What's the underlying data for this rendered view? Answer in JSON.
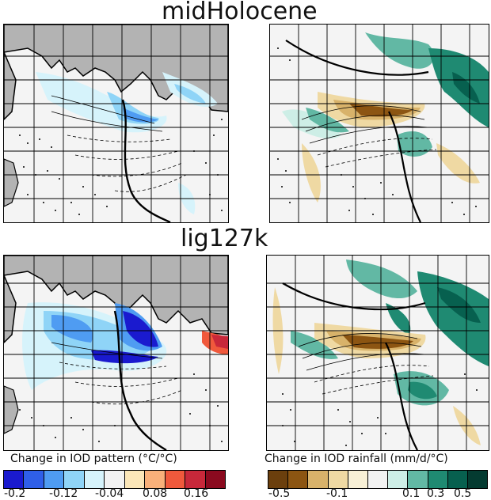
{
  "rows": [
    {
      "title": "midHolocene"
    },
    {
      "title": "lig127k"
    }
  ],
  "colorbars": {
    "sst": {
      "label": "Change in IOD pattern (°C/°C)",
      "colors": [
        "#1a1acf",
        "#2f5fe8",
        "#4f9cf2",
        "#8fd4f7",
        "#d6f3fb",
        "#f2f2f2",
        "#fbe6b8",
        "#f9b07a",
        "#f0593c",
        "#c8283a",
        "#8b0a1f"
      ],
      "ticks": [
        "-0.2",
        "-0.12",
        "-0.04",
        "0.08",
        "0.16"
      ]
    },
    "rain": {
      "label": "Change in IOD rainfall (mm/d/°C)",
      "colors": [
        "#6b3f0d",
        "#8c5512",
        "#d8b26a",
        "#efd9a3",
        "#f8f0d6",
        "#f2f2f2",
        "#cdeee6",
        "#62b8a4",
        "#1f8a72",
        "#07604f",
        "#043b31"
      ],
      "ticks": [
        "-0.5",
        "-0.1",
        "0.1",
        "0.3",
        "0.5"
      ]
    }
  }
}
